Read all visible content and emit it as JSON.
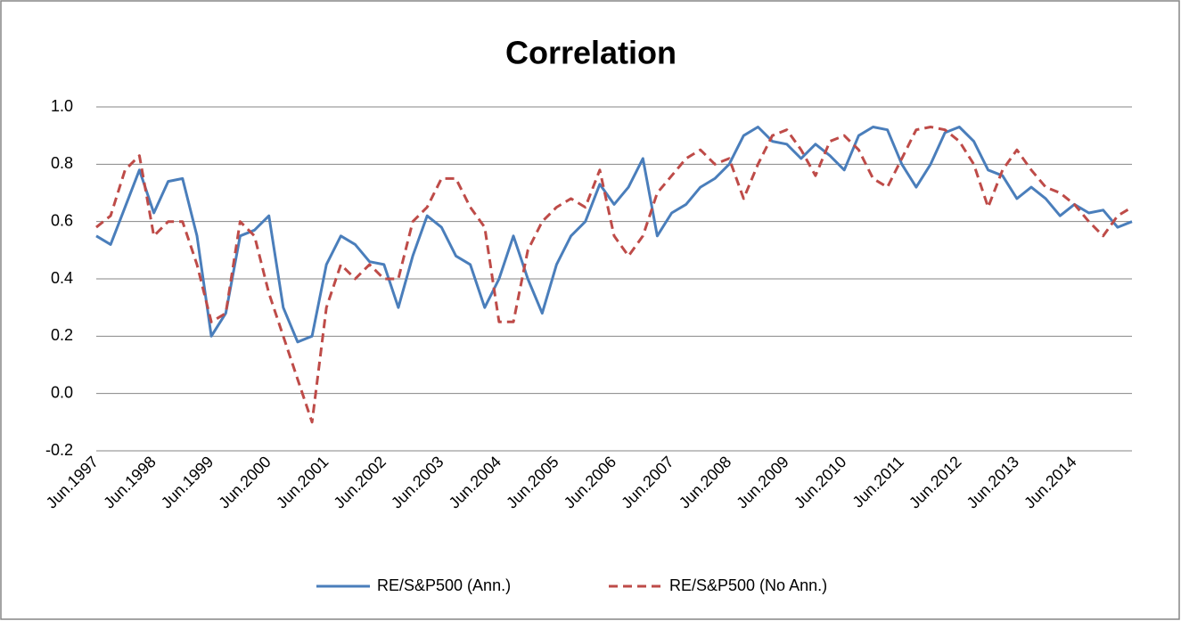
{
  "chart_data": {
    "type": "line",
    "title": "Correlation",
    "categories": [
      "Jun.1997",
      null,
      null,
      null,
      "Jun.1998",
      null,
      null,
      null,
      "Jun.1999",
      null,
      null,
      null,
      "Jun.2000",
      null,
      null,
      null,
      "Jun.2001",
      null,
      null,
      null,
      "Jun.2002",
      null,
      null,
      null,
      "Jun.2003",
      null,
      null,
      null,
      "Jun.2004",
      null,
      null,
      null,
      "Jun.2005",
      null,
      null,
      null,
      "Jun.2006",
      null,
      null,
      null,
      "Jun.2007",
      null,
      null,
      null,
      "Jun.2008",
      null,
      null,
      null,
      "Jun.2009",
      null,
      null,
      null,
      "Jun.2010",
      null,
      null,
      null,
      "Jun.2011",
      null,
      null,
      null,
      "Jun.2012",
      null,
      null,
      null,
      "Jun.2013",
      null,
      null,
      null,
      "Jun.2014",
      null,
      null,
      null,
      null
    ],
    "series": [
      {
        "name": "RE/S&P500 (Ann.)",
        "color": "#4a7ebb",
        "dash": false,
        "values": [
          0.55,
          0.52,
          0.65,
          0.78,
          0.63,
          0.74,
          0.75,
          0.55,
          0.2,
          0.28,
          0.55,
          0.57,
          0.62,
          0.3,
          0.18,
          0.2,
          0.45,
          0.55,
          0.52,
          0.46,
          0.45,
          0.3,
          0.48,
          0.62,
          0.58,
          0.48,
          0.45,
          0.3,
          0.4,
          0.55,
          0.4,
          0.28,
          0.45,
          0.55,
          0.6,
          0.73,
          0.66,
          0.72,
          0.82,
          0.55,
          0.63,
          0.66,
          0.72,
          0.75,
          0.8,
          0.9,
          0.93,
          0.88,
          0.87,
          0.82,
          0.87,
          0.83,
          0.78,
          0.9,
          0.93,
          0.92,
          0.8,
          0.72,
          0.8,
          0.91,
          0.93,
          0.88,
          0.78,
          0.76,
          0.68,
          0.72,
          0.68,
          0.62,
          0.66,
          0.63,
          0.64,
          0.58,
          0.6
        ]
      },
      {
        "name": "RE/S&P500 (No Ann.)",
        "color": "#be4b48",
        "dash": true,
        "values": [
          0.58,
          0.62,
          0.78,
          0.83,
          0.55,
          0.6,
          0.6,
          0.45,
          0.25,
          0.28,
          0.6,
          0.55,
          0.35,
          0.2,
          0.05,
          -0.1,
          0.3,
          0.45,
          0.4,
          0.45,
          0.4,
          0.4,
          0.6,
          0.65,
          0.75,
          0.75,
          0.65,
          0.58,
          0.25,
          0.25,
          0.5,
          0.6,
          0.65,
          0.68,
          0.65,
          0.78,
          0.55,
          0.48,
          0.55,
          0.7,
          0.76,
          0.82,
          0.85,
          0.8,
          0.82,
          0.68,
          0.8,
          0.9,
          0.92,
          0.85,
          0.76,
          0.88,
          0.9,
          0.85,
          0.75,
          0.72,
          0.82,
          0.92,
          0.93,
          0.92,
          0.88,
          0.8,
          0.65,
          0.78,
          0.85,
          0.78,
          0.72,
          0.7,
          0.66,
          0.6,
          0.55,
          0.62,
          0.65
        ]
      }
    ],
    "ylim": [
      -0.2,
      1.0
    ],
    "yticks": [
      {
        "value": -0.2,
        "label": "-0.2"
      },
      {
        "value": 0,
        "label": "0.0"
      },
      0.2,
      0.4,
      0.6,
      0.8,
      {
        "value": 1,
        "label": "1.0"
      }
    ],
    "grid": true,
    "legend": "bottom"
  }
}
